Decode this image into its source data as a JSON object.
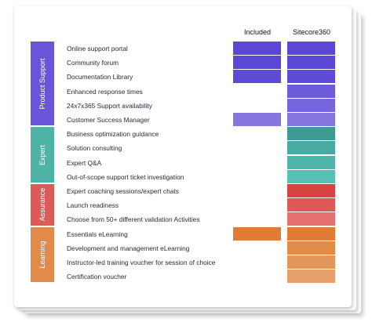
{
  "columns": {
    "included": "Included",
    "sitecore": "Sitecore360"
  },
  "sections": [
    {
      "label": "Product Support",
      "color": "#6a55d8",
      "rows": [
        {
          "label": "Online support portal",
          "included": true,
          "included_color": "#5a47d6",
          "sitecore_color": "#5a47d6"
        },
        {
          "label": "Community forum",
          "included": true,
          "included_color": "#5a47d6",
          "sitecore_color": "#5a47d6"
        },
        {
          "label": "Documentation Library",
          "included": true,
          "included_color": "#5e4bd7",
          "sitecore_color": "#5e4bd7"
        },
        {
          "label": "Enhanced response times",
          "included": false,
          "included_color": "",
          "sitecore_color": "#6c5cda"
        },
        {
          "label": "24x7x365 Support availability",
          "included": false,
          "included_color": "",
          "sitecore_color": "#7666dc"
        },
        {
          "label": "Customer Success Manager",
          "included": true,
          "included_color": "#8577df",
          "sitecore_color": "#8577df"
        }
      ]
    },
    {
      "label": "Expert",
      "color": "#4fb3a6",
      "rows": [
        {
          "label": "Business optimization guidance",
          "included": false,
          "included_color": "",
          "sitecore_color": "#3f9b91"
        },
        {
          "label": "Solution consulting",
          "included": false,
          "included_color": "",
          "sitecore_color": "#48aaa0"
        },
        {
          "label": "Expert Q&A",
          "included": false,
          "included_color": "",
          "sitecore_color": "#4fb5aa"
        },
        {
          "label": "Out-of-scope support ticket investigation",
          "included": false,
          "included_color": "",
          "sitecore_color": "#58c0b4"
        }
      ]
    },
    {
      "label": "Assurance",
      "color": "#dc5b59",
      "rows": [
        {
          "label": "Expert coaching sessions/expert chats",
          "included": false,
          "included_color": "",
          "sitecore_color": "#d9423f"
        },
        {
          "label": "Launch readiness",
          "included": false,
          "included_color": "",
          "sitecore_color": "#de5a56"
        },
        {
          "label": "Choose from 50+ different validation Activities",
          "included": false,
          "included_color": "",
          "sitecore_color": "#e4716d"
        }
      ]
    },
    {
      "label": "Learning",
      "color": "#e18a49",
      "rows": [
        {
          "label": "Essentials eLearning",
          "included": true,
          "included_color": "#e07c35",
          "sitecore_color": "#e07c35"
        },
        {
          "label": "Development and management eLearning",
          "included": false,
          "included_color": "",
          "sitecore_color": "#e28a48"
        },
        {
          "label": "Instructor-led training voucher for session of choice",
          "included": false,
          "included_color": "",
          "sitecore_color": "#e3955a"
        },
        {
          "label": "Certification voucher",
          "included": false,
          "included_color": "",
          "sitecore_color": "#e5a06d"
        }
      ]
    }
  ]
}
